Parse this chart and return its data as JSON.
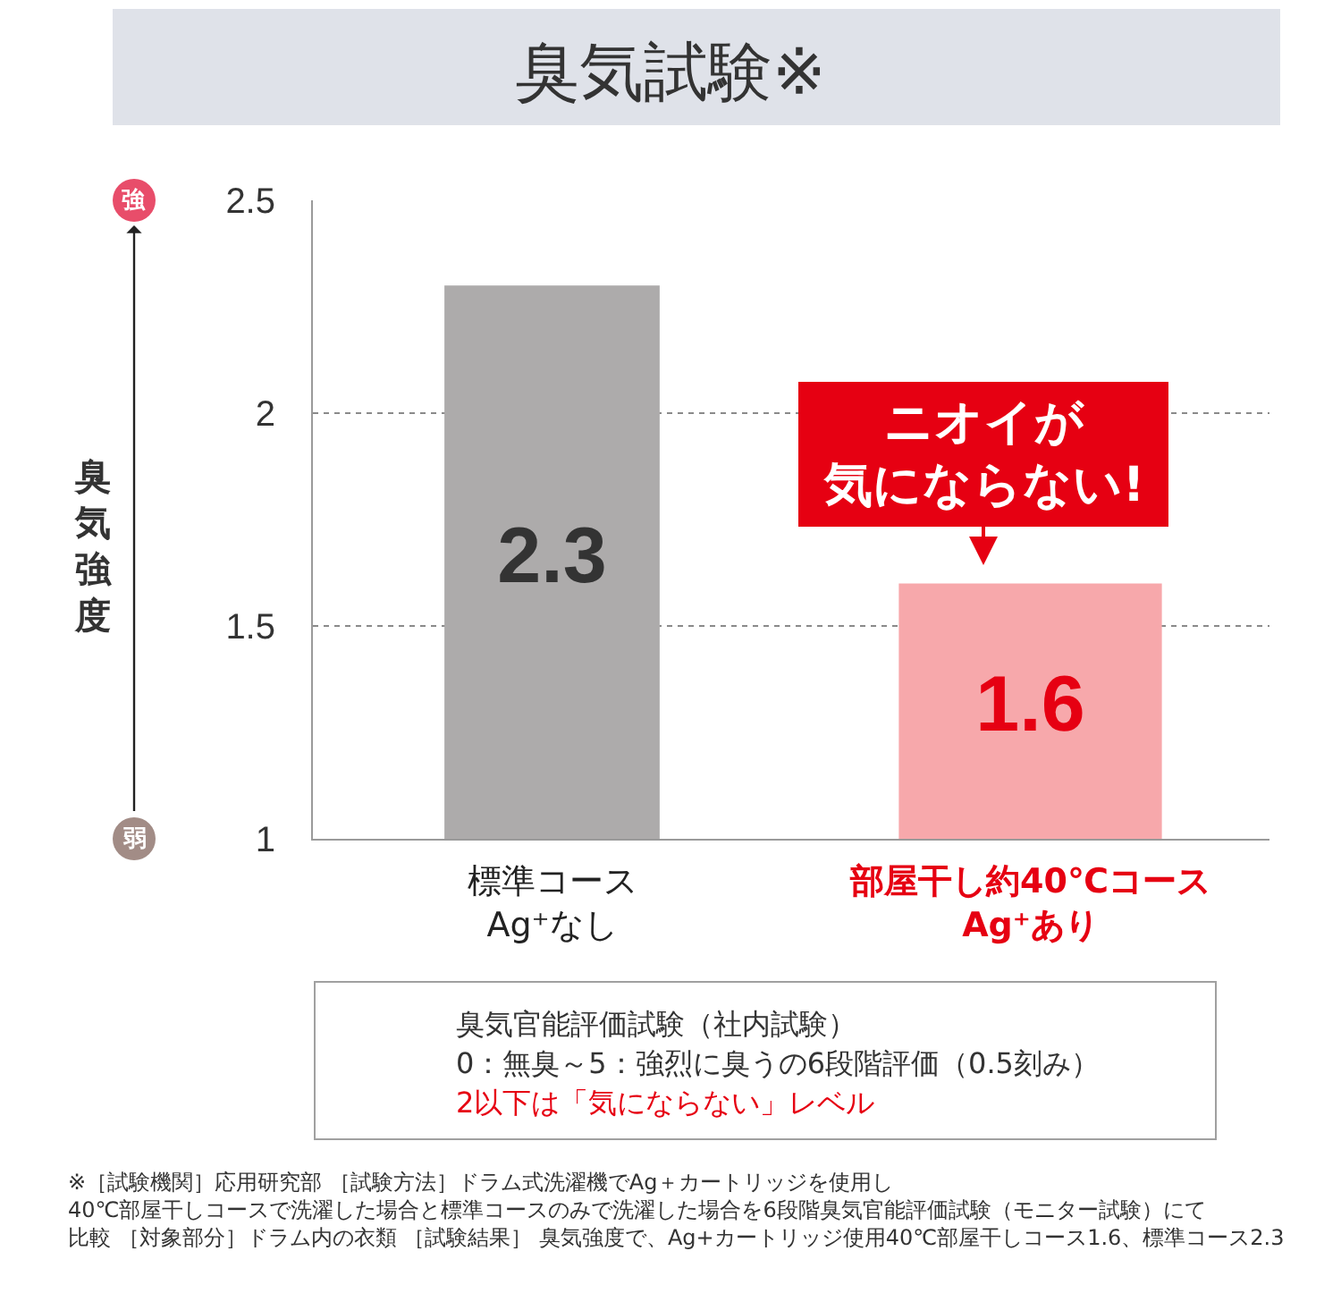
{
  "chart_data": {
    "type": "bar",
    "title": "臭気試験※",
    "ylabel": "臭気強度",
    "categories": [
      "標準コース\nAg⁺なし",
      "部屋干し約40℃コース\nAg⁺あり"
    ],
    "values": [
      2.3,
      1.6
    ],
    "colors": [
      "#adabab",
      "#f7a8ab"
    ],
    "data_labels": true,
    "ylim": [
      1,
      2.5
    ],
    "yticks": [
      1,
      1.5,
      2,
      2.5
    ],
    "grid": "y",
    "annotations": [
      "ニオイが気にならない!",
      "強",
      "弱",
      "臭気官能評価試験（社内試験）",
      "0：無臭～5：強烈に臭うの6段階評価（0.5刻み）",
      "2以下は「気にならない」レベル",
      "※［試験機関］応用研究部 ［試験方法］ドラム式洗濯機でAg＋カートリッジを使用し40℃部屋干しコースで洗濯した場合と標準コースのみで洗濯した場合を6段階臭気官能評価試験（モニター試験）にて比較 ［対象部分］ドラム内の衣類 ［試験結果］ 臭気強度で、Ag+カートリッジ使用40℃部屋干しコース1.6、標準コース2.3"
    ]
  }
}
